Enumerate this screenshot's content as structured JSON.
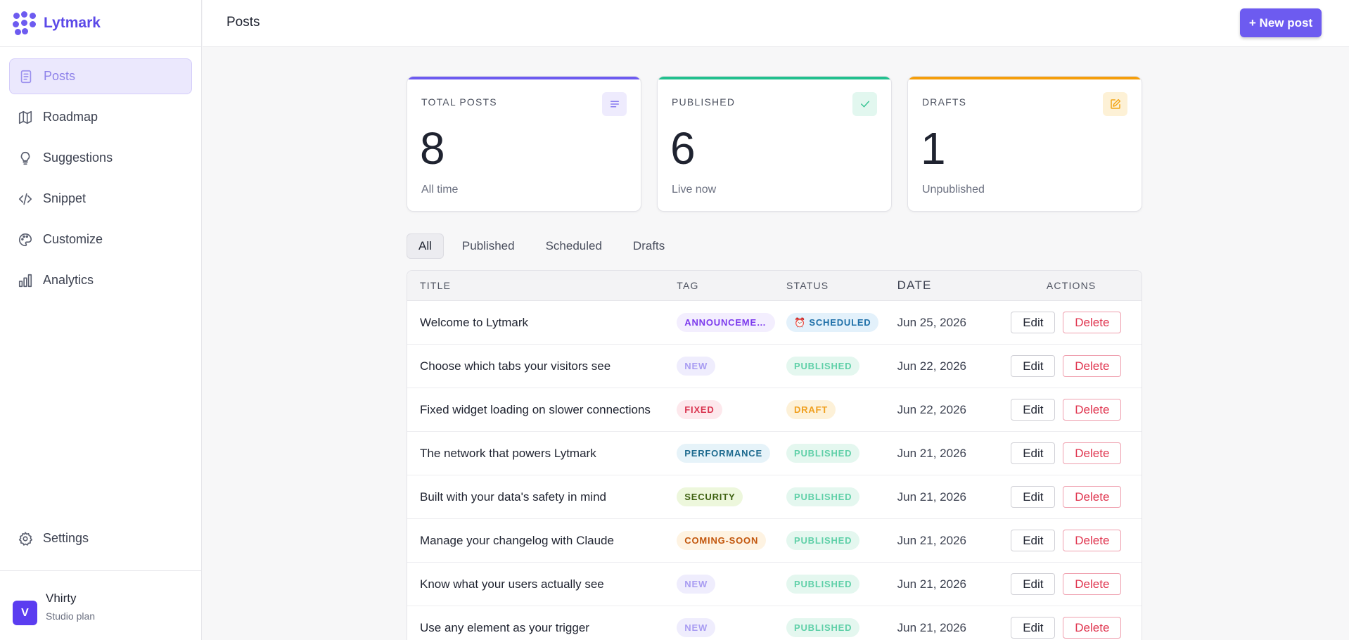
{
  "brand": {
    "name": "Lytmark"
  },
  "sidebar": {
    "items": [
      {
        "label": "Posts",
        "icon": "document-icon",
        "active": true
      },
      {
        "label": "Roadmap",
        "icon": "map-icon",
        "active": false
      },
      {
        "label": "Suggestions",
        "icon": "lightbulb-icon",
        "active": false
      },
      {
        "label": "Snippet",
        "icon": "code-icon",
        "active": false
      },
      {
        "label": "Customize",
        "icon": "palette-icon",
        "active": false
      },
      {
        "label": "Analytics",
        "icon": "bar-chart-icon",
        "active": false
      }
    ],
    "settings_label": "Settings"
  },
  "user": {
    "initial": "V",
    "name": "Vhirty",
    "plan": "Studio plan"
  },
  "header": {
    "title": "Posts",
    "new_post_label": "+ New post"
  },
  "stats": [
    {
      "label": "TOTAL POSTS",
      "value": "8",
      "sub": "All time",
      "accent": "#6d5bf0",
      "icon": "lines-icon",
      "icon_bg": "#eeebfd",
      "icon_color": "#8a7cf0"
    },
    {
      "label": "PUBLISHED",
      "value": "6",
      "sub": "Live now",
      "accent": "#22c08e",
      "icon": "check-icon",
      "icon_bg": "#e2f7ef",
      "icon_color": "#3ac595"
    },
    {
      "label": "DRAFTS",
      "value": "1",
      "sub": "Unpublished",
      "accent": "#f59e0b",
      "icon": "pencil-square-icon",
      "icon_bg": "#fdf1d6",
      "icon_color": "#f2a516"
    }
  ],
  "tabs": [
    {
      "label": "All",
      "active": true
    },
    {
      "label": "Published",
      "active": false
    },
    {
      "label": "Scheduled",
      "active": false
    },
    {
      "label": "Drafts",
      "active": false
    }
  ],
  "table": {
    "columns": {
      "title": "TITLE",
      "tag": "TAG",
      "status": "STATUS",
      "date": "DATE",
      "actions": "ACTIONS"
    },
    "edit_label": "Edit",
    "delete_label": "Delete",
    "rows": [
      {
        "title": "Welcome to Lytmark",
        "tag": "ANNOUNCEMENT",
        "tag_color": "#7c3aed",
        "tag_bg": "#f3eefe",
        "status": "⏰ SCHEDULED",
        "status_color": "#1e6fa8",
        "status_bg": "#e3f1fb",
        "date": "Jun 25, 2026"
      },
      {
        "title": "Choose which tabs your visitors see",
        "tag": "NEW",
        "tag_color": "#a99df2",
        "tag_bg": "#efedfd",
        "status": "PUBLISHED",
        "status_color": "#5fd0a8",
        "status_bg": "#e4f7ef",
        "date": "Jun 22, 2026"
      },
      {
        "title": "Fixed widget loading on slower connections",
        "tag": "FIXED",
        "tag_color": "#d9344f",
        "tag_bg": "#fde8ec",
        "status": "DRAFT",
        "status_color": "#f0a020",
        "status_bg": "#fdf1d8",
        "date": "Jun 22, 2026"
      },
      {
        "title": "The network that powers Lytmark",
        "tag": "PERFORMANCE",
        "tag_color": "#1d6a8e",
        "tag_bg": "#e6f3f9",
        "status": "PUBLISHED",
        "status_color": "#5fd0a8",
        "status_bg": "#e4f7ef",
        "date": "Jun 21, 2026"
      },
      {
        "title": "Built with your data's safety in mind",
        "tag": "SECURITY",
        "tag_color": "#3f6212",
        "tag_bg": "#edf7dc",
        "status": "PUBLISHED",
        "status_color": "#5fd0a8",
        "status_bg": "#e4f7ef",
        "date": "Jun 21, 2026"
      },
      {
        "title": "Manage your changelog with Claude",
        "tag": "COMING-SOON",
        "tag_color": "#c2560c",
        "tag_bg": "#fef3e2",
        "status": "PUBLISHED",
        "status_color": "#5fd0a8",
        "status_bg": "#e4f7ef",
        "date": "Jun 21, 2026"
      },
      {
        "title": "Know what your users actually see",
        "tag": "NEW",
        "tag_color": "#a99df2",
        "tag_bg": "#efedfd",
        "status": "PUBLISHED",
        "status_color": "#5fd0a8",
        "status_bg": "#e4f7ef",
        "date": "Jun 21, 2026"
      },
      {
        "title": "Use any element as your trigger",
        "tag": "NEW",
        "tag_color": "#a99df2",
        "tag_bg": "#efedfd",
        "status": "PUBLISHED",
        "status_color": "#5fd0a8",
        "status_bg": "#e4f7ef",
        "date": "Jun 21, 2026"
      }
    ]
  }
}
